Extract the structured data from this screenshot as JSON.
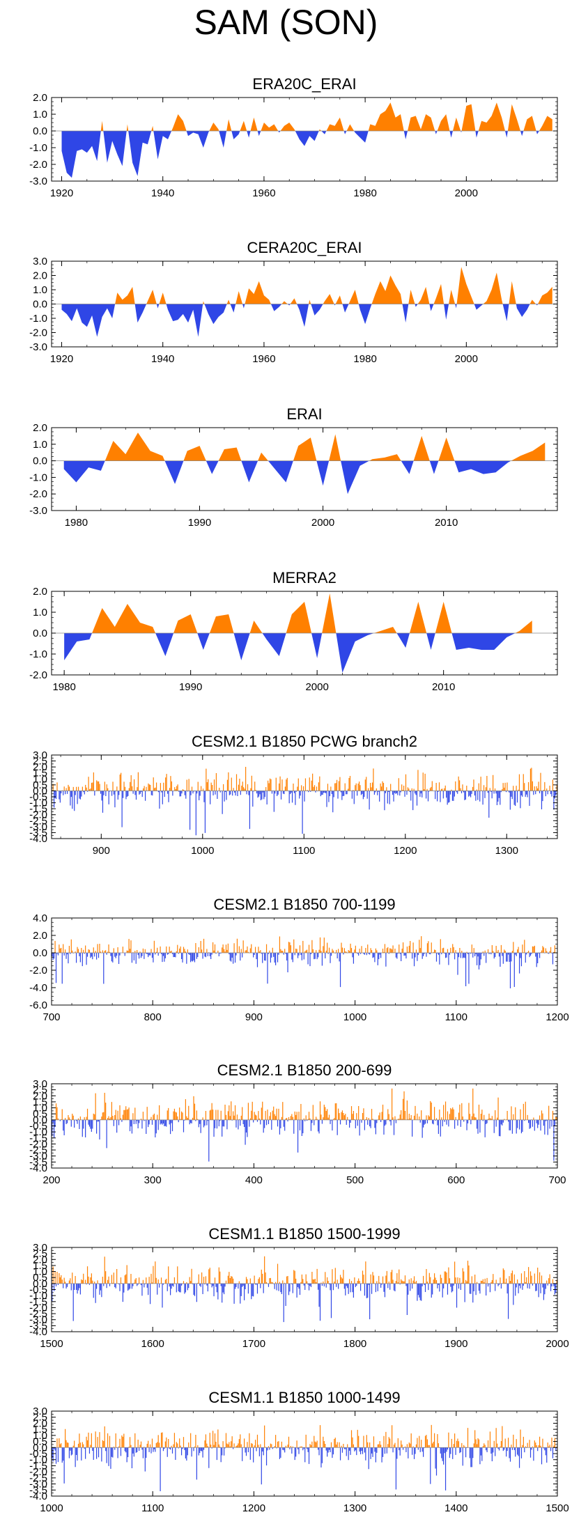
{
  "title": "SAM (SON)",
  "colors": {
    "positive": "#ff8000",
    "negative": "#2f46e6",
    "frame": "#000000",
    "zero_line": "#888888"
  },
  "chart_data": [
    {
      "type": "area",
      "title": "ERA20C_ERAI",
      "xlim": [
        1918,
        2018
      ],
      "ylim": [
        -3,
        2
      ],
      "xticks": [
        1920,
        1940,
        1960,
        1980,
        2000
      ],
      "yticks": [
        2,
        1,
        0,
        -1,
        -2,
        -3
      ],
      "ytick_labels": [
        "2.0",
        "1.0",
        "0.0",
        "-1.0",
        "-2.0",
        "-3.0"
      ],
      "x": [
        1920,
        1921,
        1922,
        1923,
        1924,
        1925,
        1926,
        1927,
        1928,
        1929,
        1930,
        1931,
        1932,
        1933,
        1934,
        1935,
        1936,
        1937,
        1938,
        1939,
        1940,
        1941,
        1942,
        1943,
        1944,
        1945,
        1946,
        1947,
        1948,
        1949,
        1950,
        1951,
        1952,
        1953,
        1954,
        1955,
        1956,
        1957,
        1958,
        1959,
        1960,
        1961,
        1962,
        1963,
        1964,
        1965,
        1966,
        1967,
        1968,
        1969,
        1970,
        1971,
        1972,
        1973,
        1974,
        1975,
        1976,
        1977,
        1978,
        1979,
        1980,
        1981,
        1982,
        1983,
        1984,
        1985,
        1986,
        1987,
        1988,
        1989,
        1990,
        1991,
        1992,
        1993,
        1994,
        1995,
        1996,
        1997,
        1998,
        1999,
        2000,
        2001,
        2002,
        2003,
        2004,
        2005,
        2006,
        2007,
        2008,
        2009,
        2010,
        2011,
        2012,
        2013,
        2014,
        2015,
        2016,
        2017
      ],
      "values": [
        -1.2,
        -2.5,
        -2.8,
        -1.2,
        -1.1,
        -1.3,
        -0.9,
        -1.8,
        0.6,
        -1.9,
        -0.6,
        -1.4,
        -2.1,
        0.4,
        -1.9,
        -2.7,
        -0.7,
        -0.8,
        0.3,
        -1.7,
        -0.3,
        -0.5,
        0.2,
        1.0,
        0.6,
        -0.3,
        -0.1,
        -0.2,
        -1.0,
        -0.1,
        0.5,
        0.1,
        -1.0,
        0.7,
        -0.5,
        -0.2,
        0.6,
        -0.4,
        0.8,
        -0.3,
        0.5,
        0.2,
        0.4,
        -0.1,
        0.3,
        0.5,
        0.1,
        -0.5,
        -0.9,
        -0.3,
        -0.6,
        0.1,
        -0.2,
        0.4,
        0.3,
        0.8,
        -0.2,
        0.4,
        -0.1,
        -0.4,
        -0.7,
        0.4,
        0.3,
        1.0,
        1.2,
        1.7,
        0.8,
        1.0,
        -0.5,
        0.8,
        0.9,
        0.1,
        1.0,
        0.8,
        -0.2,
        0.6,
        1.0,
        -0.4,
        0.8,
        -0.1,
        1.5,
        1.6,
        -0.4,
        0.6,
        0.5,
        0.9,
        1.7,
        0.8,
        -0.4,
        1.6,
        0.7,
        -0.3,
        0.7,
        0.9,
        -0.2,
        0.3,
        0.9,
        0.7
      ]
    },
    {
      "type": "area",
      "title": "CERA20C_ERAI",
      "xlim": [
        1918,
        2018
      ],
      "ylim": [
        -3,
        3
      ],
      "xticks": [
        1920,
        1940,
        1960,
        1980,
        2000
      ],
      "yticks": [
        3,
        2,
        1,
        0,
        -1,
        -2,
        -3
      ],
      "ytick_labels": [
        "3.0",
        "2.0",
        "1.0",
        "0.0",
        "-1.0",
        "-2.0",
        "-3.0"
      ],
      "x": [
        1920,
        1921,
        1922,
        1923,
        1924,
        1925,
        1926,
        1927,
        1928,
        1929,
        1930,
        1931,
        1932,
        1933,
        1934,
        1935,
        1936,
        1937,
        1938,
        1939,
        1940,
        1941,
        1942,
        1943,
        1944,
        1945,
        1946,
        1947,
        1948,
        1949,
        1950,
        1951,
        1952,
        1953,
        1954,
        1955,
        1956,
        1957,
        1958,
        1959,
        1960,
        1961,
        1962,
        1963,
        1964,
        1965,
        1966,
        1967,
        1968,
        1969,
        1970,
        1971,
        1972,
        1973,
        1974,
        1975,
        1976,
        1977,
        1978,
        1979,
        1980,
        1981,
        1982,
        1983,
        1984,
        1985,
        1986,
        1987,
        1988,
        1989,
        1990,
        1991,
        1992,
        1993,
        1994,
        1995,
        1996,
        1997,
        1998,
        1999,
        2000,
        2001,
        2002,
        2003,
        2004,
        2005,
        2006,
        2007,
        2008,
        2009,
        2010,
        2011,
        2012,
        2013,
        2014,
        2015,
        2016,
        2017
      ],
      "values": [
        -0.4,
        -0.7,
        -1.2,
        -0.3,
        -1.3,
        -1.6,
        -0.8,
        -2.3,
        -0.9,
        -0.3,
        -1.0,
        0.8,
        0.3,
        0.6,
        1.2,
        -1.3,
        -0.6,
        0.2,
        1.0,
        -0.3,
        0.8,
        -0.4,
        -1.2,
        -1.1,
        -0.7,
        -1.3,
        -0.4,
        -2.3,
        0.2,
        -0.7,
        -1.4,
        -0.9,
        -0.6,
        0.3,
        -0.6,
        0.9,
        -0.3,
        1.1,
        0.7,
        1.6,
        0.6,
        0.3,
        -0.5,
        -0.2,
        0.2,
        -0.1,
        0.4,
        -0.4,
        -1.6,
        0.3,
        -0.8,
        -0.4,
        0.2,
        0.7,
        -0.1,
        0.6,
        -0.6,
        0.2,
        1.0,
        -0.4,
        -1.4,
        -0.3,
        0.7,
        1.6,
        0.9,
        2.0,
        1.3,
        0.7,
        -1.3,
        1.0,
        -0.2,
        0.3,
        1.2,
        -0.5,
        0.4,
        1.4,
        -1.1,
        1.0,
        -0.3,
        2.6,
        1.4,
        0.5,
        -0.4,
        -0.1,
        0.2,
        1.0,
        2.2,
        0.3,
        -1.2,
        1.6,
        -0.3,
        -0.9,
        -0.4,
        0.3,
        -0.1,
        0.6,
        0.8,
        1.2
      ]
    },
    {
      "type": "area",
      "title": "ERAI",
      "xlim": [
        1978,
        2019
      ],
      "ylim": [
        -3,
        2
      ],
      "xticks": [
        1980,
        1990,
        2000,
        2010
      ],
      "yticks": [
        2,
        1,
        0,
        -1,
        -2,
        -3
      ],
      "ytick_labels": [
        "2.0",
        "1.0",
        "0.0",
        "-1.0",
        "-2.0",
        "-3.0"
      ],
      "x": [
        1979,
        1980,
        1981,
        1982,
        1983,
        1984,
        1985,
        1986,
        1987,
        1988,
        1989,
        1990,
        1991,
        1992,
        1993,
        1994,
        1995,
        1996,
        1997,
        1998,
        1999,
        2000,
        2001,
        2002,
        2003,
        2004,
        2005,
        2006,
        2007,
        2008,
        2009,
        2010,
        2011,
        2012,
        2013,
        2014,
        2015,
        2016,
        2017,
        2018
      ],
      "values": [
        -0.5,
        -1.3,
        -0.4,
        -0.6,
        1.2,
        0.4,
        1.7,
        0.6,
        0.3,
        -1.4,
        0.6,
        0.9,
        -0.8,
        0.7,
        0.8,
        -1.3,
        0.5,
        -0.4,
        -1.3,
        0.9,
        1.4,
        -1.5,
        1.6,
        -2.0,
        -0.3,
        0.1,
        0.2,
        0.4,
        -0.8,
        1.5,
        -0.8,
        1.4,
        -0.7,
        -0.5,
        -0.8,
        -0.7,
        -0.1,
        0.3,
        0.6,
        1.1
      ]
    },
    {
      "type": "area",
      "title": "MERRA2",
      "xlim": [
        1979,
        2019
      ],
      "ylim": [
        -2,
        2
      ],
      "xticks": [
        1980,
        1990,
        2000,
        2010
      ],
      "yticks": [
        2,
        1,
        0,
        -1,
        -2
      ],
      "ytick_labels": [
        "2.0",
        "1.0",
        "0.0",
        "-1.0",
        "-2.0"
      ],
      "x": [
        1980,
        1981,
        1982,
        1983,
        1984,
        1985,
        1986,
        1987,
        1988,
        1989,
        1990,
        1991,
        1992,
        1993,
        1994,
        1995,
        1996,
        1997,
        1998,
        1999,
        2000,
        2001,
        2002,
        2003,
        2004,
        2005,
        2006,
        2007,
        2008,
        2009,
        2010,
        2011,
        2012,
        2013,
        2014,
        2015,
        2016,
        2017
      ],
      "values": [
        -1.3,
        -0.4,
        -0.3,
        1.2,
        0.3,
        1.4,
        0.5,
        0.3,
        -1.1,
        0.6,
        0.9,
        -0.8,
        0.8,
        0.9,
        -1.3,
        0.6,
        -0.3,
        -1.1,
        0.9,
        1.5,
        -1.2,
        1.9,
        -1.9,
        -0.4,
        -0.1,
        0.1,
        0.3,
        -0.7,
        1.5,
        -0.8,
        1.5,
        -0.8,
        -0.7,
        -0.8,
        -0.8,
        -0.2,
        0.1,
        0.6
      ]
    },
    {
      "type": "bar",
      "title": "CESM2.1 B1850 PCWG branch2",
      "xlim": [
        851,
        1350
      ],
      "ylim": [
        -4,
        3
      ],
      "xticks": [
        900,
        1000,
        1100,
        1200,
        1300
      ],
      "yticks": [
        3,
        2.5,
        2,
        1.5,
        1,
        0.5,
        0,
        -0.5,
        -1,
        -1.5,
        -2,
        -2.5,
        -3,
        -3.5,
        -4
      ],
      "ytick_labels": [
        "3.0",
        "2.5",
        "2.0",
        "1.5",
        "1.0",
        "0.5",
        "0.0",
        "-0.5",
        "-1.0",
        "-1.5",
        "-2.0",
        "-2.5",
        "-3.0",
        "-3.5",
        "-4.0"
      ],
      "n_years": 500,
      "amplitude_range": [
        -3.9,
        2.4
      ]
    },
    {
      "type": "bar",
      "title": "CESM2.1 B1850 700-1199",
      "xlim": [
        700,
        1200
      ],
      "ylim": [
        -6,
        4
      ],
      "xticks": [
        700,
        800,
        900,
        1000,
        1100,
        1200
      ],
      "yticks": [
        4,
        2,
        0,
        -2,
        -4,
        -6
      ],
      "ytick_labels": [
        "4.0",
        "2.0",
        "0.0",
        "-2.0",
        "-4.0",
        "-6.0"
      ],
      "n_years": 500,
      "amplitude_range": [
        -4.2,
        2.2
      ]
    },
    {
      "type": "bar",
      "title": "CESM2.1 B1850 200-699",
      "xlim": [
        200,
        700
      ],
      "ylim": [
        -4,
        3
      ],
      "xticks": [
        200,
        300,
        400,
        500,
        600,
        700
      ],
      "yticks": [
        3,
        2.5,
        2,
        1.5,
        1,
        0.5,
        0,
        -0.5,
        -1,
        -1.5,
        -2,
        -2.5,
        -3,
        -3.5,
        -4
      ],
      "ytick_labels": [
        "3.0",
        "2.5",
        "2.0",
        "1.5",
        "1.0",
        "0.5",
        "0.0",
        "-0.5",
        "-1.0",
        "-1.5",
        "-2.0",
        "-2.5",
        "-3.0",
        "-3.5",
        "-4.0"
      ],
      "n_years": 500,
      "amplitude_range": [
        -3.6,
        2.6
      ]
    },
    {
      "type": "bar",
      "title": "CESM1.1 B1850 1500-1999",
      "xlim": [
        1500,
        2000
      ],
      "ylim": [
        -4,
        3
      ],
      "xticks": [
        1500,
        1600,
        1700,
        1800,
        1900,
        2000
      ],
      "yticks": [
        3,
        2.5,
        2,
        1.5,
        1,
        0.5,
        0,
        -0.5,
        -1,
        -1.5,
        -2,
        -2.5,
        -3,
        -3.5,
        -4
      ],
      "ytick_labels": [
        "3.0",
        "2.5",
        "2.0",
        "1.5",
        "1.0",
        "0.5",
        "0.0",
        "-0.5",
        "-1.0",
        "-1.5",
        "-2.0",
        "-2.5",
        "-3.0",
        "-3.5",
        "-4.0"
      ],
      "n_years": 500,
      "amplitude_range": [
        -3.4,
        2.4
      ]
    },
    {
      "type": "bar",
      "title": "CESM1.1 B1850 1000-1499",
      "xlim": [
        1000,
        1500
      ],
      "ylim": [
        -4,
        3
      ],
      "xticks": [
        1000,
        1100,
        1200,
        1300,
        1400,
        1500
      ],
      "yticks": [
        3,
        2.5,
        2,
        1.5,
        1,
        0.5,
        0,
        -0.5,
        -1,
        -1.5,
        -2,
        -2.5,
        -3,
        -3.5,
        -4
      ],
      "ytick_labels": [
        "3.0",
        "2.5",
        "2.0",
        "1.5",
        "1.0",
        "0.5",
        "0.0",
        "-0.5",
        "-1.0",
        "-1.5",
        "-2.0",
        "-2.5",
        "-3.0",
        "-3.5",
        "-4.0"
      ],
      "n_years": 500,
      "amplitude_range": [
        -3.8,
        2.3
      ]
    }
  ]
}
